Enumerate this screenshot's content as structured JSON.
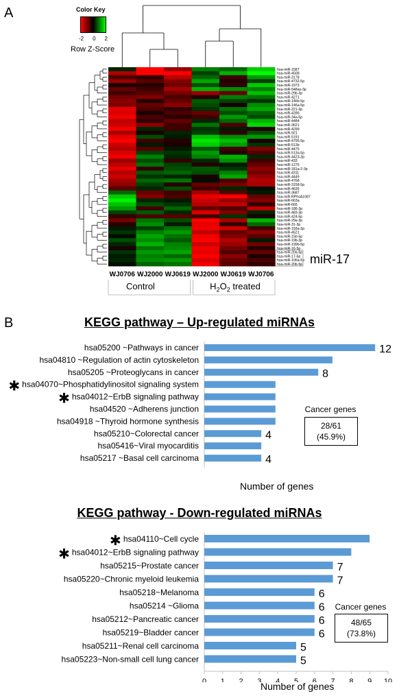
{
  "panel_a": {
    "letter": "A",
    "color_key": {
      "title": "Color Key",
      "ticks": [
        "-2",
        "0",
        "2"
      ],
      "label": "Row Z-Score",
      "colors": {
        "low": "#ff0000",
        "mid": "#000000",
        "high": "#00ff00"
      }
    },
    "callout": "miR-17",
    "groups": [
      {
        "label": "Control",
        "subscript_parts": null
      },
      {
        "label": "H2O2 treated",
        "parts": [
          "H",
          "2",
          "O",
          "2",
          " treated"
        ]
      }
    ]
  },
  "panel_b": {
    "letter": "B",
    "bar_color": "#5b9bd5"
  },
  "chart_data": [
    {
      "type": "heatmap",
      "title": "",
      "columns": [
        "WJ0706",
        "WJ2000",
        "WJ0619",
        "WJ2000",
        "WJ0619",
        "WJ0706"
      ],
      "rows": [
        "hsa-miR-1587",
        "hsa-miR-4508",
        "hsa-miR-3178",
        "hsa-miR-4732-5p",
        "hsa-miR-1973",
        "hsa-miR-548as-3p",
        "hsa-miR-29b-3p",
        "hsa-miR-4271",
        "hsa-miR-146b-5p",
        "hsa-miR-146a-5p",
        "hsa-miR-221-3p",
        "hsa-miR-4286",
        "hsa-miR-34a-5p",
        "hsa-miR-4484",
        "hsa-miR-3621",
        "hsa-miR-4299",
        "hsa-miR-921",
        "hsa-miR-5191",
        "hsa-miR-4795-5p",
        "hsa-miR-513b",
        "hsa-miR-4475",
        "hsa-miR-513a-5p",
        "hsa-miR-4423-3p",
        "hsa-miR-433",
        "hsa-miR-1275",
        "hsa-miR-181a-2-3p",
        "hsa-miR-4311",
        "hsa-miR-4449",
        "hsa-miR-4768",
        "hsa-miR-3158-5p",
        "hsa-miR-4635",
        "hsa-miR-3687",
        "hsa-miR-RPhsA1087",
        "hsa-miR-663a",
        "hsa-miR-665",
        "hsa-miR-186-3p",
        "hsa-miR-483-3p",
        "hsa-miR-424-5p",
        "hsa-miR-29a-3p",
        "hsa-miR-31-3p",
        "hsa-miR-193a-3p",
        "hsa-miR-4521",
        "hsa-miR-15b-5p",
        "hsa-miR-19b-3p",
        "hsa-miR-199b-5p",
        "hsa-miR-16-5p",
        "hsa-miR-20a-5p",
        "hsa-miR-17-5p",
        "hsa-miR-106a-5p",
        "hsa-miR-20b-5p"
      ],
      "values": [
        [
          0.3,
          -2.0,
          -1.2,
          1.0,
          0.8,
          1.6
        ],
        [
          -1.4,
          -2.0,
          -2.0,
          0.5,
          1.4,
          2.0
        ],
        [
          -0.6,
          -0.4,
          -1.5,
          0.8,
          -0.5,
          1.2
        ],
        [
          -1.2,
          -0.7,
          -1.0,
          1.3,
          -0.3,
          0.5
        ],
        [
          -0.2,
          -0.3,
          -0.9,
          0.6,
          -0.4,
          1.6
        ],
        [
          -0.8,
          -0.5,
          -1.3,
          1.4,
          1.1,
          1.0
        ],
        [
          -0.5,
          -0.7,
          -0.9,
          -1.2,
          -0.8,
          1.5
        ],
        [
          -0.9,
          -1.0,
          -0.6,
          -0.3,
          1.0,
          0.9
        ],
        [
          -1.1,
          -0.3,
          -0.8,
          0.7,
          0.5,
          0.4
        ],
        [
          -1.0,
          -0.8,
          -1.1,
          0.6,
          -0.2,
          1.1
        ],
        [
          -1.8,
          -0.6,
          -0.4,
          0.4,
          0.9,
          1.3
        ],
        [
          -1.7,
          -0.2,
          -0.6,
          -0.8,
          0.6,
          0.8
        ],
        [
          -1.9,
          -0.6,
          -0.3,
          -0.5,
          1.2,
          0.6
        ],
        [
          -1.5,
          -0.4,
          -0.8,
          0.3,
          0.8,
          1.4
        ],
        [
          -1.6,
          -1.1,
          -0.5,
          0.9,
          -0.6,
          1.7
        ],
        [
          -1.9,
          0.3,
          -0.5,
          0.4,
          0.2,
          -0.3
        ],
        [
          -1.3,
          -0.2,
          0.3,
          0.5,
          -0.4,
          0.6
        ],
        [
          -1.8,
          0.6,
          0.2,
          1.5,
          1.1,
          1.2
        ],
        [
          -2.0,
          -0.5,
          -0.3,
          1.8,
          1.5,
          -0.2
        ],
        [
          -1.6,
          0.2,
          -0.2,
          1.6,
          1.2,
          0.4
        ],
        [
          -1.4,
          -0.7,
          0.2,
          0.7,
          -0.5,
          -1.0
        ],
        [
          -1.7,
          0.5,
          0.4,
          1.2,
          -0.3,
          -0.6
        ],
        [
          -1.9,
          1.0,
          0.3,
          1.0,
          1.4,
          0.3
        ],
        [
          -1.2,
          0.6,
          -0.4,
          0.3,
          1.1,
          -0.5
        ],
        [
          -1.5,
          0.9,
          0.5,
          -0.3,
          0.2,
          -0.8
        ],
        [
          -1.8,
          -0.4,
          0.6,
          0.7,
          0.4,
          -1.1
        ],
        [
          -1.4,
          0.7,
          0.8,
          0.6,
          1.0,
          -0.9
        ],
        [
          -1.6,
          0.4,
          0.3,
          -0.2,
          1.3,
          -1.2
        ],
        [
          -1.3,
          0.8,
          0.9,
          0.1,
          -0.6,
          -1.4
        ],
        [
          -1.1,
          0.5,
          -0.3,
          -0.8,
          -0.9,
          -1.3
        ],
        [
          -0.7,
          0.3,
          0.6,
          -0.5,
          0.3,
          0.1
        ],
        [
          0.8,
          -0.8,
          -0.5,
          -1.3,
          -0.7,
          0.2
        ],
        [
          1.6,
          -1.0,
          -0.6,
          -1.8,
          -2.0,
          -0.8
        ],
        [
          1.9,
          0.3,
          0.2,
          -1.6,
          -1.2,
          -1.0
        ],
        [
          1.5,
          0.6,
          0.4,
          -1.4,
          -1.5,
          -0.4
        ],
        [
          1.2,
          -0.5,
          0.8,
          -0.8,
          -0.6,
          -1.5
        ],
        [
          0.5,
          0.7,
          0.3,
          -1.7,
          -1.0,
          0.3
        ],
        [
          -0.4,
          -0.6,
          -0.7,
          -0.5,
          0.4,
          -0.2
        ],
        [
          -0.9,
          0.9,
          0.6,
          -2.0,
          -1.3,
          1.4
        ],
        [
          -0.3,
          1.1,
          0.2,
          -1.8,
          -0.4,
          0.8
        ],
        [
          0.2,
          0.5,
          0.9,
          -1.9,
          -1.6,
          -0.5
        ],
        [
          0.4,
          1.0,
          1.2,
          -1.5,
          -0.8,
          -1.1
        ],
        [
          0.1,
          1.3,
          0.9,
          -1.9,
          -1.0,
          -0.7
        ],
        [
          0.6,
          1.1,
          0.7,
          -2.0,
          -1.4,
          0.2
        ],
        [
          0.3,
          1.4,
          1.0,
          -1.6,
          -1.2,
          -0.9
        ],
        [
          -0.2,
          0.9,
          1.1,
          -1.9,
          -0.9,
          -0.3
        ],
        [
          0.4,
          1.2,
          1.3,
          -1.8,
          -0.6,
          -0.8
        ],
        [
          0.2,
          1.0,
          0.8,
          -2.0,
          -1.1,
          -0.2
        ],
        [
          0.3,
          1.1,
          1.2,
          -1.7,
          -0.8,
          -0.6
        ],
        [
          0.1,
          0.8,
          0.9,
          -1.9,
          -0.7,
          -0.4
        ]
      ]
    },
    {
      "type": "bar",
      "orientation": "horizontal",
      "title": "KEGG pathway – Up-regulated miRNAs",
      "xlabel": "Number of genes",
      "xlim": [
        0,
        13
      ],
      "xticks": [
        0,
        1,
        2,
        3,
        4,
        5,
        6,
        7,
        8,
        9,
        10,
        11,
        12,
        13
      ],
      "categories": [
        "hsa05200 ~Pathways in cancer",
        "hsa04810  ~Regulation of actin cytoskeleton",
        "hsa05205 ~Proteoglycans in cancer",
        "hsa04070~Phosphatidylinositol signaling system",
        "hsa04012~ErbB signaling pathway",
        "hsa04520  ~Adherens junction",
        "hsa04918 ~Thyroid hormone synthesis",
        "hsa05210~Colorectal cancer",
        "hsa05416~Viral myocarditis",
        "hsa05217 ~Basal cell carcinoma"
      ],
      "values": [
        12,
        9,
        8,
        5,
        5,
        5,
        5,
        4,
        4,
        4
      ],
      "starred": [
        false,
        false,
        false,
        true,
        true,
        false,
        false,
        false,
        false,
        false
      ],
      "data_labels": [
        "12",
        "",
        "8",
        "",
        "",
        "",
        "",
        "4",
        "",
        "4"
      ],
      "annotation": {
        "title": "Cancer  genes",
        "line1": "28/61",
        "line2": "(45.9%)"
      }
    },
    {
      "type": "bar",
      "orientation": "horizontal",
      "title": "KEGG pathway - Down-regulated miRNAs",
      "xlabel": "Number of genes",
      "xlim": [
        0,
        10
      ],
      "xticks": [
        0,
        1,
        2,
        3,
        4,
        5,
        6,
        7,
        8,
        9,
        10
      ],
      "categories": [
        "hsa04110~Cell cycle",
        "hsa04012~ErbB signaling pathway",
        "hsa05215~Prostate cancer",
        "hsa05220~Chronic myeloid leukemia",
        "hsa05218~Melanoma",
        "hsa05214 ~Glioma",
        "hsa05212~Pancreatic cancer",
        "hsa05219~Bladder cancer",
        "hsa05211~Renal cell carcinoma",
        "hsa05223~Non-small cell lung cancer"
      ],
      "values": [
        9,
        8,
        7,
        7,
        6,
        6,
        6,
        6,
        5,
        5
      ],
      "starred": [
        true,
        true,
        false,
        false,
        false,
        false,
        false,
        false,
        false,
        false
      ],
      "data_labels": [
        "",
        "",
        "7",
        "7",
        "6",
        "6",
        "6",
        "6",
        "5",
        "5"
      ],
      "annotation": {
        "title": "Cancer  genes",
        "line1": "48/65",
        "line2": "(73.8%)"
      }
    }
  ]
}
